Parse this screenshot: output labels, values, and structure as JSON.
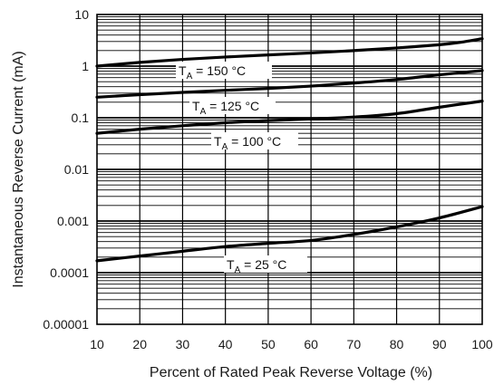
{
  "chart_data": {
    "type": "line",
    "title": "",
    "xlabel": "Percent of Rated Peak Reverse Voltage (%)",
    "ylabel": "Instantaneous Reverse Current (mA)",
    "xlim": [
      10,
      100
    ],
    "ylim": [
      1e-05,
      10
    ],
    "yscale": "log",
    "grid": true,
    "x_ticks": [
      10,
      20,
      30,
      40,
      50,
      60,
      70,
      80,
      90,
      100
    ],
    "x_tick_labels": [
      "10",
      "20",
      "30",
      "40",
      "50",
      "60",
      "70",
      "80",
      "90",
      "100"
    ],
    "y_ticks": [
      1e-05,
      0.0001,
      0.001,
      0.01,
      0.1,
      1,
      10
    ],
    "y_tick_labels": [
      "0.00001",
      "0.0001",
      "0.001",
      "0.01",
      "0.1",
      "1",
      "10"
    ],
    "series": [
      {
        "label_main": "T",
        "label_sub": "A",
        "label_rest": " = 150 °C",
        "x": [
          10,
          20,
          30,
          40,
          50,
          60,
          70,
          80,
          90,
          95,
          100
        ],
        "y": [
          1.0,
          1.18,
          1.35,
          1.5,
          1.65,
          1.8,
          2.0,
          2.25,
          2.6,
          2.9,
          3.4
        ]
      },
      {
        "label_main": "T",
        "label_sub": "A",
        "label_rest": " = 125 °C",
        "x": [
          10,
          20,
          30,
          40,
          50,
          60,
          70,
          80,
          90,
          100
        ],
        "y": [
          0.25,
          0.28,
          0.31,
          0.34,
          0.37,
          0.41,
          0.47,
          0.55,
          0.68,
          0.82
        ]
      },
      {
        "label_main": "T",
        "label_sub": "A",
        "label_rest": " = 100 °C",
        "x": [
          10,
          20,
          30,
          40,
          50,
          60,
          70,
          80,
          90,
          100
        ],
        "y": [
          0.05,
          0.06,
          0.07,
          0.08,
          0.088,
          0.095,
          0.103,
          0.12,
          0.16,
          0.21
        ]
      },
      {
        "label_main": "T",
        "label_sub": "A",
        "label_rest": " = 25 °C",
        "x": [
          10,
          20,
          30,
          40,
          50,
          60,
          70,
          80,
          90,
          100
        ],
        "y": [
          0.00017,
          0.00021,
          0.00026,
          0.00032,
          0.00037,
          0.00042,
          0.00055,
          0.00077,
          0.00115,
          0.0019
        ]
      }
    ],
    "line_color": "#000000"
  }
}
